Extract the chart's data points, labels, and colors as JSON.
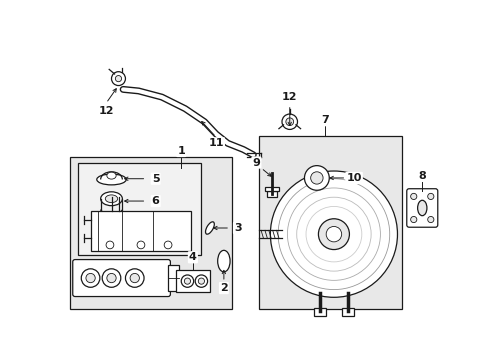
{
  "bg_color": "#ffffff",
  "line_color": "#1a1a1a",
  "gray_fill": "#e8e8e8",
  "light_fill": "#f2f2f2",
  "dark_gray": "#888888",
  "fig_width": 4.89,
  "fig_height": 3.6,
  "dpi": 100
}
